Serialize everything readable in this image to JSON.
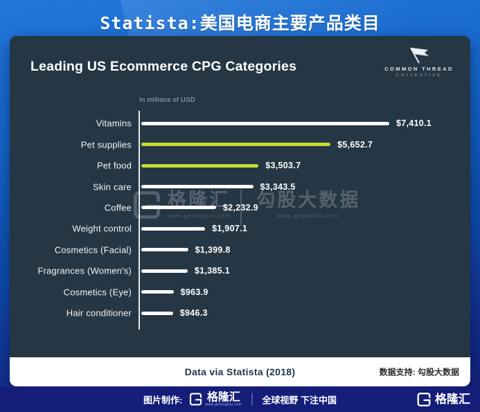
{
  "header": {
    "title": "Statista:美国电商主要产品类目"
  },
  "chart": {
    "title": "Leading US Ecommerce CPG Categories",
    "units_note": "In millions of USD",
    "logo": {
      "line1": "COMMON THREAD",
      "line2": "COLLECTIVE"
    }
  },
  "chart_data": {
    "type": "bar",
    "orientation": "horizontal",
    "title": "Leading US Ecommerce CPG Categories",
    "units": "In millions of USD",
    "categories": [
      "Vitamins",
      "Pet supplies",
      "Pet food",
      "Skin care",
      "Coffee",
      "Weight control",
      "Cosmetics (Facial)",
      "Fragrances (Women's)",
      "Cosmetics (Eye)",
      "Hair conditioner"
    ],
    "values": [
      7410.1,
      5652.7,
      3503.7,
      3343.5,
      2232.9,
      1907.1,
      1399.8,
      1385.1,
      963.9,
      946.3
    ],
    "value_labels": [
      "$7,410.1",
      "$5,652.7",
      "$3,503.7",
      "$3,343.5",
      "$2,232.9",
      "$1,907.1",
      "$1,399.8",
      "$1,385.1",
      "$963.9",
      "$946.3"
    ],
    "bar_colors": [
      "#ffffff",
      "#c4dc34",
      "#c4dc34",
      "#ffffff",
      "#ffffff",
      "#ffffff",
      "#ffffff",
      "#ffffff",
      "#ffffff",
      "#ffffff"
    ],
    "xlim": [
      0,
      7800
    ],
    "grid": false,
    "legend": false
  },
  "watermark": {
    "brand": "格隆汇",
    "brand_url": "www.gelonghui.com",
    "product": "勾股大数据",
    "product_url": "www.gogudata.com"
  },
  "card_footer": {
    "source": "Data via Statista (2018)",
    "support": "数据支持: 勾股大数据"
  },
  "footer": {
    "made_by": "图片制作:",
    "brand": "格隆汇",
    "brand_url": "www.gelonghui.com",
    "slogan": "全球视野 下注中国",
    "right_brand": "格隆汇"
  },
  "colors": {
    "accent_lime": "#c4dc34",
    "bar_white": "#ffffff",
    "card_bg": "#253644",
    "footer_bg": "#141d78",
    "page_blue_top": "#2277da",
    "page_blue_bottom": "#131c72"
  }
}
